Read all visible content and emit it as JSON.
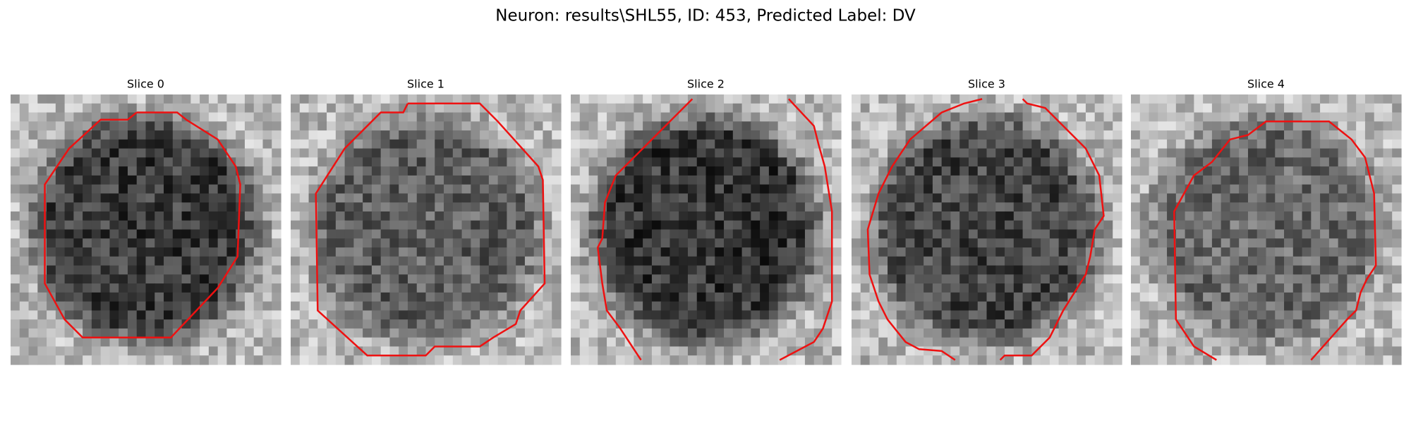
{
  "title": "Neuron: results\\SHL55, ID: 453, Predicted Label: DV",
  "panels": [
    {
      "title": "Slice 0"
    },
    {
      "title": "Slice 1"
    },
    {
      "title": "Slice 2"
    },
    {
      "title": "Slice 3"
    },
    {
      "title": "Slice 4"
    }
  ]
}
